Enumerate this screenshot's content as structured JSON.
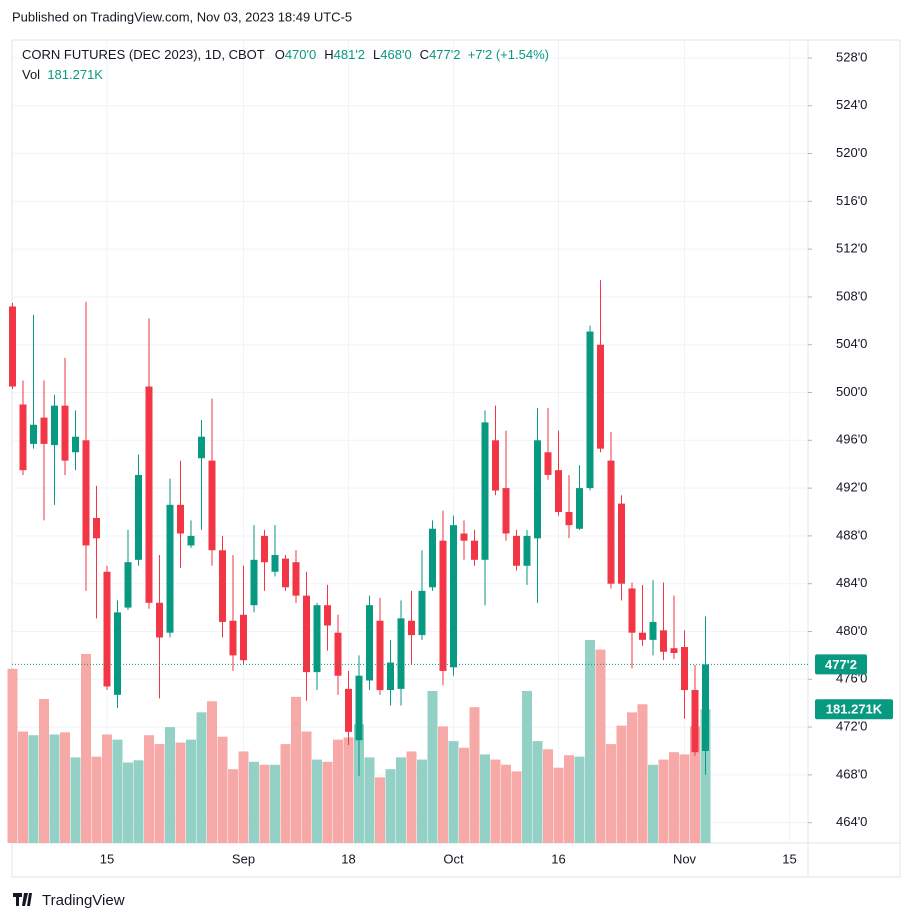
{
  "header": "Published on TradingView.com, Nov 03, 2023 18:49 UTC-5",
  "footer": "TradingView",
  "chart_data": {
    "type": "candlestick",
    "legend": {
      "symbol": "CORN FUTURES (DEC 2023), 1D, CBOT",
      "items": [
        {
          "key": "O",
          "value": "470'0"
        },
        {
          "key": "H",
          "value": "481'2"
        },
        {
          "key": "L",
          "value": "468'0"
        },
        {
          "key": "C",
          "value": "477'2"
        }
      ],
      "change": "+7'2 (+1.54%)",
      "volume_key": "Vol"
    },
    "categories": [
      null,
      null,
      null,
      null,
      null,
      null,
      null,
      null,
      null,
      "15",
      null,
      null,
      null,
      null,
      null,
      null,
      null,
      null,
      null,
      null,
      null,
      null,
      "Sep",
      null,
      null,
      null,
      null,
      null,
      null,
      null,
      null,
      null,
      "18",
      null,
      null,
      null,
      null,
      null,
      null,
      null,
      null,
      null,
      "Oct",
      null,
      null,
      null,
      null,
      null,
      null,
      null,
      null,
      null,
      "16",
      null,
      null,
      null,
      null,
      null,
      null,
      null,
      null,
      null,
      null,
      null,
      "Nov",
      null,
      null,
      null,
      null,
      null,
      null,
      null,
      null,
      null,
      "15"
    ],
    "open": [
      507.2,
      499.0,
      495.7,
      497.9,
      495.6,
      498.9,
      495.0,
      496.0,
      489.5,
      485.0,
      474.7,
      482.0,
      486.0,
      500.5,
      482.4,
      479.9,
      490.6,
      487.2,
      494.5,
      494.3,
      486.8,
      480.9,
      481.4,
      482.2,
      488.0,
      485.0,
      486.1,
      485.8,
      483.0,
      476.6,
      482.2,
      479.9,
      475.2,
      470.9,
      475.9,
      480.9,
      475.1,
      475.2,
      480.9,
      479.7,
      483.7,
      487.6,
      477.0,
      488.2,
      487.6,
      486.0,
      496.0,
      492.0,
      488.0,
      485.5,
      487.8,
      495.0,
      493.5,
      490.0,
      488.6,
      492.0,
      504.0,
      494.3,
      490.7,
      483.6,
      479.9,
      479.3,
      480.1,
      478.6,
      478.7,
      475.1,
      470.0,
      null,
      null,
      null,
      null,
      null,
      null,
      null,
      null
    ],
    "high": [
      507.5,
      501.0,
      506.5,
      501.0,
      499.8,
      502.9,
      498.5,
      507.6,
      492.2,
      485.5,
      482.6,
      488.5,
      494.8,
      506.2,
      486.4,
      492.8,
      494.3,
      489.3,
      497.7,
      499.5,
      488.0,
      486.4,
      485.5,
      488.9,
      488.5,
      488.9,
      486.4,
      486.8,
      485.0,
      482.4,
      483.9,
      481.4,
      476.7,
      478.0,
      483.0,
      482.8,
      479.3,
      482.6,
      483.4,
      486.8,
      489.3,
      490.1,
      489.7,
      489.3,
      488.5,
      498.5,
      498.9,
      496.8,
      488.5,
      488.5,
      498.7,
      498.7,
      496.8,
      493.1,
      493.9,
      505.6,
      509.4,
      496.7,
      491.4,
      484.1,
      483.9,
      484.3,
      484.1,
      483.0,
      480.1,
      477.2,
      481.25,
      null,
      null,
      null,
      null,
      null,
      null,
      null,
      null
    ],
    "low": [
      500.3,
      493.1,
      495.3,
      489.3,
      490.6,
      493.1,
      493.5,
      483.4,
      481.1,
      475.1,
      473.6,
      481.8,
      485.5,
      481.9,
      474.4,
      479.5,
      485.3,
      487.0,
      488.5,
      485.5,
      479.5,
      476.7,
      477.2,
      481.6,
      483.4,
      484.6,
      483.4,
      482.4,
      474.2,
      475.1,
      478.4,
      474.7,
      470.5,
      467.9,
      475.1,
      474.7,
      473.8,
      473.8,
      477.2,
      479.3,
      483.4,
      475.5,
      476.3,
      486.0,
      485.5,
      482.2,
      491.4,
      487.6,
      485.1,
      483.9,
      482.4,
      492.7,
      489.7,
      487.8,
      488.5,
      491.8,
      495.0,
      483.6,
      482.6,
      476.9,
      478.8,
      478.0,
      477.6,
      477.7,
      472.7,
      469.6,
      468.0,
      null,
      null,
      null,
      null,
      null,
      null,
      null,
      null
    ],
    "close": [
      500.5,
      493.5,
      497.3,
      495.7,
      498.9,
      494.3,
      496.3,
      487.2,
      487.8,
      475.4,
      481.6,
      485.8,
      493.1,
      482.4,
      479.5,
      490.6,
      488.2,
      488.0,
      496.3,
      486.8,
      480.8,
      478.0,
      477.6,
      486.0,
      485.8,
      486.4,
      483.7,
      483.0,
      476.6,
      482.2,
      480.5,
      476.3,
      471.6,
      476.3,
      482.2,
      475.1,
      477.4,
      481.1,
      479.7,
      483.4,
      488.6,
      476.7,
      488.9,
      487.6,
      486.0,
      497.5,
      491.8,
      488.2,
      485.5,
      488.0,
      496.0,
      493.1,
      490.0,
      488.9,
      492.0,
      505.1,
      495.3,
      484.0,
      484.0,
      479.9,
      479.3,
      480.8,
      478.3,
      478.2,
      475.1,
      469.9,
      477.25,
      null,
      null,
      null,
      null,
      null,
      null,
      null,
      null
    ],
    "volume": [
      236000,
      151000,
      146000,
      195000,
      147000,
      150000,
      116000,
      256000,
      117000,
      147000,
      140000,
      109000,
      112000,
      146000,
      134000,
      157000,
      136000,
      140000,
      177000,
      192000,
      144000,
      100000,
      124000,
      110000,
      106000,
      106000,
      134000,
      198000,
      151000,
      113000,
      110000,
      140000,
      143000,
      161000,
      116000,
      89000,
      100000,
      116000,
      124000,
      113000,
      206000,
      158000,
      138000,
      129000,
      184000,
      120000,
      113000,
      106000,
      97000,
      206000,
      138000,
      127000,
      102000,
      119000,
      117000,
      275000,
      262000,
      134000,
      159000,
      177000,
      188000,
      106000,
      113000,
      123000,
      120000,
      158000,
      181271,
      null,
      null,
      null,
      null,
      null,
      null,
      null,
      null
    ],
    "volume_label": "181.271K",
    "last_price": {
      "value": 477.25,
      "label": "477'2"
    },
    "ylim": [
      462.3,
      529.5
    ],
    "yticks": [
      {
        "value": 464,
        "label": "464'0"
      },
      {
        "value": 468,
        "label": "468'0"
      },
      {
        "value": 472,
        "label": "472'0"
      },
      {
        "value": 476,
        "label": "476'0"
      },
      {
        "value": 480,
        "label": "480'0"
      },
      {
        "value": 484,
        "label": "484'0"
      },
      {
        "value": 488,
        "label": "488'0"
      },
      {
        "value": 492,
        "label": "492'0"
      },
      {
        "value": 496,
        "label": "496'0"
      },
      {
        "value": 500,
        "label": "500'0"
      },
      {
        "value": 504,
        "label": "504'0"
      },
      {
        "value": 508,
        "label": "508'0"
      },
      {
        "value": 512,
        "label": "512'0"
      },
      {
        "value": 516,
        "label": "516'0"
      },
      {
        "value": 520,
        "label": "520'0"
      },
      {
        "value": 524,
        "label": "524'0"
      },
      {
        "value": 528,
        "label": "528'0"
      }
    ],
    "grid": true,
    "up_color": "#089981",
    "down_color": "#f23645",
    "volume_up_color": "#93d0c6",
    "volume_down_color": "#f7a9a7"
  }
}
